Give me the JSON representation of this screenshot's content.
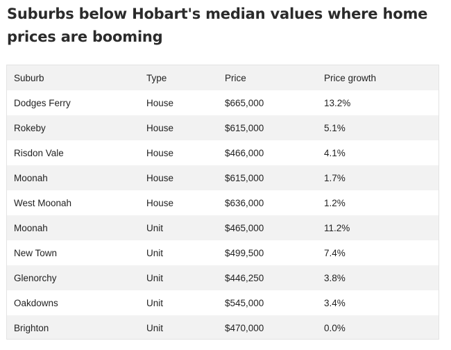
{
  "title": "Suburbs below Hobart's median values where home prices are booming",
  "table": {
    "headers": [
      "Suburb",
      "Type",
      "Price",
      "Price growth"
    ],
    "rows": [
      [
        "Dodges Ferry",
        "House",
        "$665,000",
        "13.2%"
      ],
      [
        "Rokeby",
        "House",
        "$615,000",
        "5.1%"
      ],
      [
        "Risdon Vale",
        "House",
        "$466,000",
        "4.1%"
      ],
      [
        "Moonah",
        "House",
        "$615,000",
        "1.7%"
      ],
      [
        "West Moonah",
        "House",
        "$636,000",
        "1.2%"
      ],
      [
        "Moonah",
        "Unit",
        "$465,000",
        "11.2%"
      ],
      [
        "New Town",
        "Unit",
        "$499,500",
        "7.4%"
      ],
      [
        "Glenorchy",
        "Unit",
        "$446,250",
        "3.8%"
      ],
      [
        "Oakdowns",
        "Unit",
        "$545,000",
        "3.4%"
      ],
      [
        "Brighton",
        "Unit",
        "$470,000",
        "0.0%"
      ]
    ]
  }
}
